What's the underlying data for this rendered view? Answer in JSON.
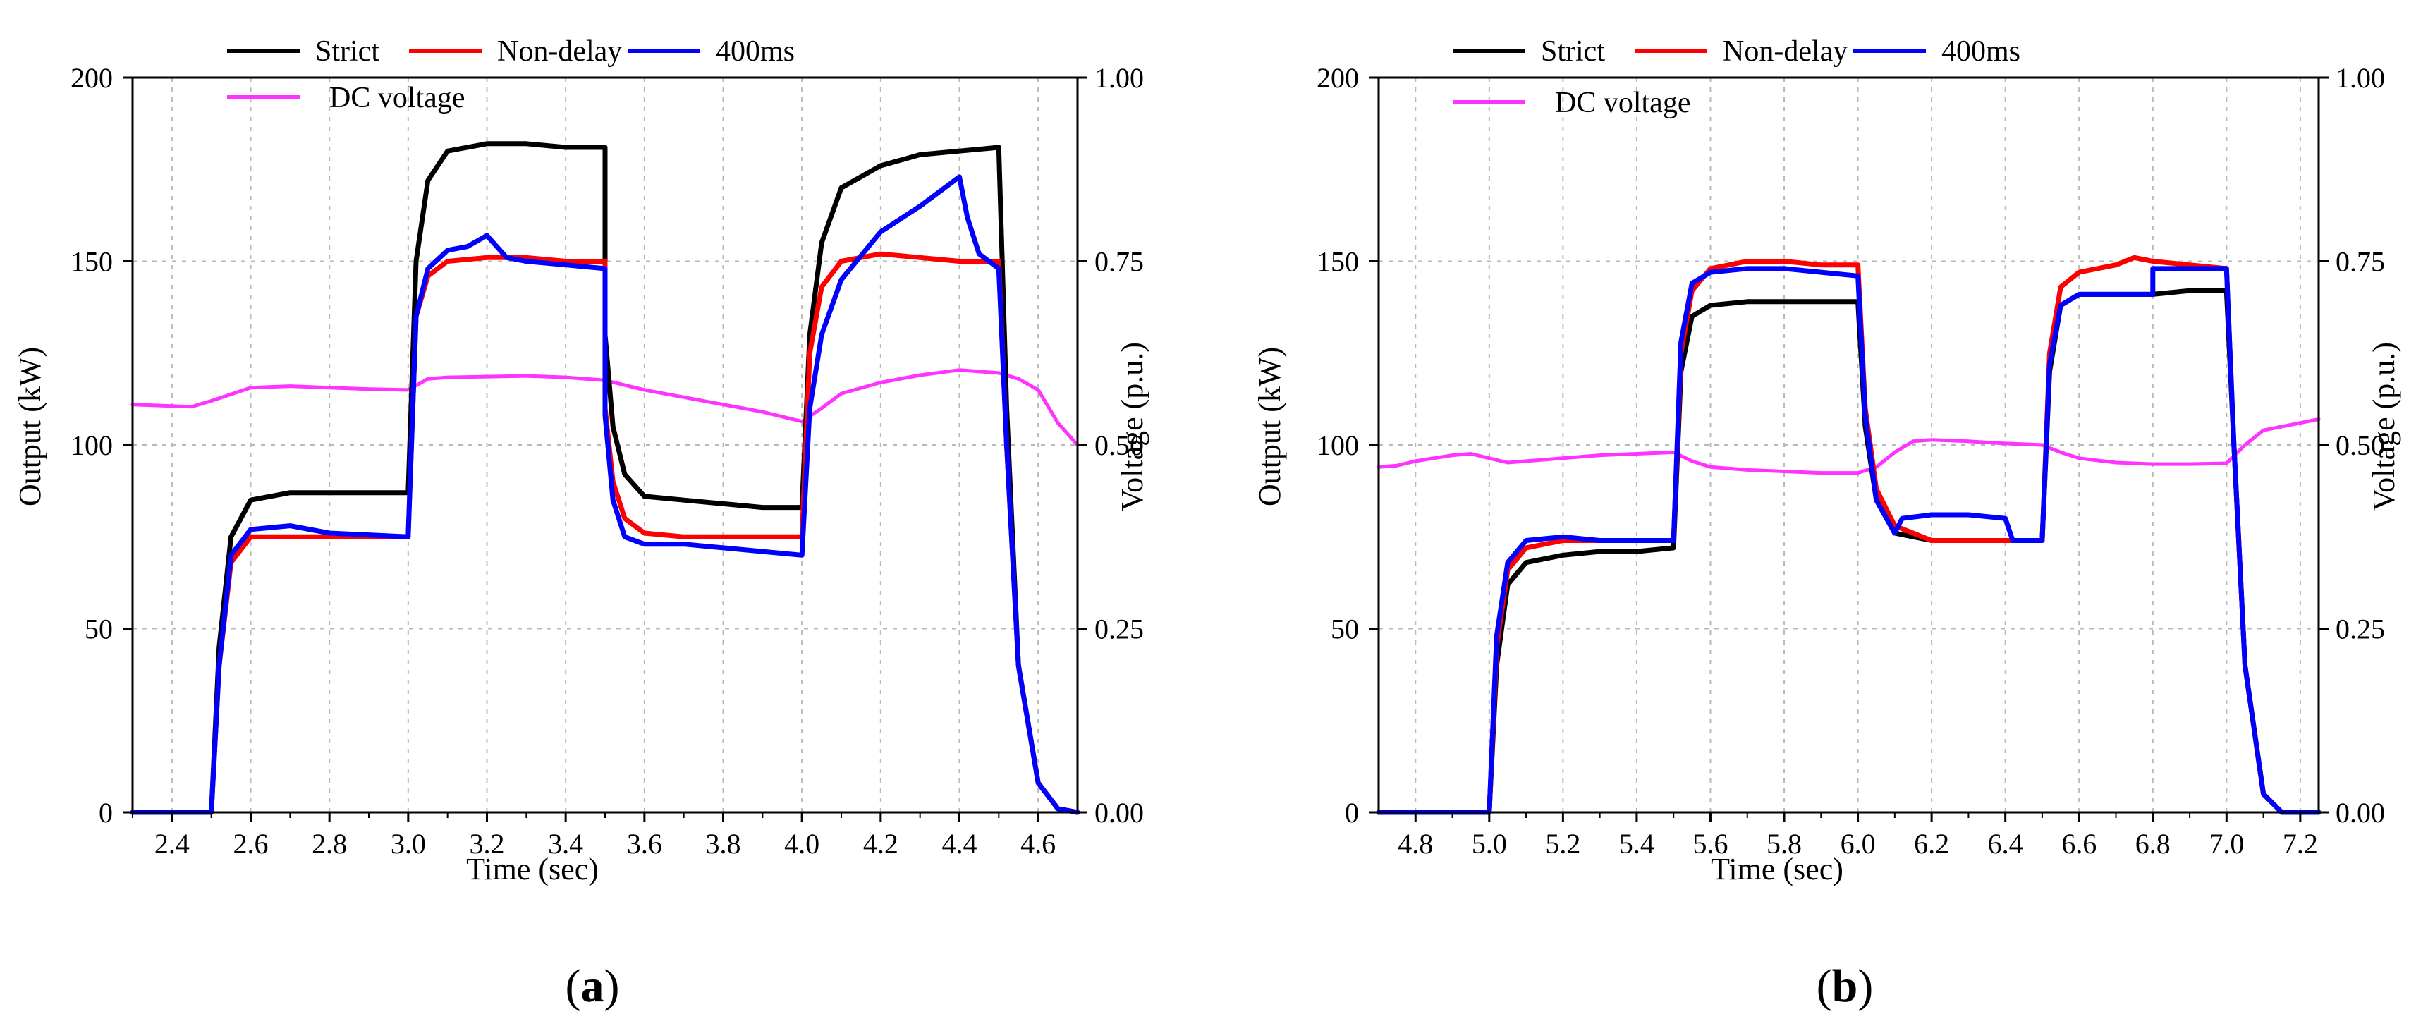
{
  "chart_data": [
    {
      "type": "line",
      "panel": "a",
      "caption": {
        "open": "(",
        "letter": "a",
        "close": ")"
      },
      "xlabel": "Time (sec)",
      "ylabel": "Output (kW)",
      "y2label": "Voltage (p.u.)",
      "xlim": [
        2.3,
        4.7
      ],
      "ylim": [
        0,
        200
      ],
      "y2lim": [
        0,
        1
      ],
      "xticks": [
        "2.4",
        "2.6",
        "2.8",
        "3.0",
        "3.2",
        "3.4",
        "3.6",
        "3.8",
        "4.0",
        "4.2",
        "4.4",
        "4.6"
      ],
      "yticks": [
        "0",
        "50",
        "100",
        "150",
        "200"
      ],
      "y2ticks": [
        "0.00",
        "0.25",
        "0.50",
        "0.75",
        "1.00"
      ],
      "grid": true,
      "legend": [
        "Strict",
        "Non-delay",
        "400ms",
        "DC voltage"
      ],
      "series": [
        {
          "name": "Strict",
          "color": "#000000",
          "axis": "left",
          "x": [
            2.3,
            2.5,
            2.5,
            2.52,
            2.55,
            2.6,
            2.7,
            2.8,
            3.0,
            3.0,
            3.02,
            3.05,
            3.1,
            3.2,
            3.3,
            3.4,
            3.5,
            3.5,
            3.52,
            3.55,
            3.6,
            3.7,
            3.8,
            3.9,
            4.0,
            4.0,
            4.02,
            4.05,
            4.1,
            4.2,
            4.3,
            4.4,
            4.5,
            4.5,
            4.52,
            4.55,
            4.6,
            4.65,
            4.7
          ],
          "y": [
            0,
            0,
            0,
            45,
            75,
            85,
            87,
            87,
            87,
            87,
            150,
            172,
            180,
            182,
            182,
            181,
            181,
            130,
            105,
            92,
            86,
            85,
            84,
            83,
            83,
            83,
            130,
            155,
            170,
            176,
            179,
            180,
            181,
            181,
            110,
            40,
            8,
            1,
            0
          ]
        },
        {
          "name": "Non-delay",
          "color": "#ff0000",
          "axis": "left",
          "x": [
            2.3,
            2.5,
            2.5,
            2.52,
            2.55,
            2.6,
            2.7,
            2.8,
            3.0,
            3.0,
            3.02,
            3.05,
            3.1,
            3.2,
            3.3,
            3.4,
            3.5,
            3.5,
            3.52,
            3.55,
            3.6,
            3.7,
            3.8,
            3.9,
            4.0,
            4.0,
            4.02,
            4.05,
            4.1,
            4.2,
            4.3,
            4.4,
            4.5,
            4.5,
            4.52,
            4.55,
            4.6,
            4.65,
            4.7
          ],
          "y": [
            0,
            0,
            0,
            40,
            68,
            75,
            75,
            75,
            75,
            75,
            135,
            146,
            150,
            151,
            151,
            150,
            150,
            110,
            90,
            80,
            76,
            75,
            75,
            75,
            75,
            75,
            125,
            143,
            150,
            152,
            151,
            150,
            150,
            150,
            100,
            40,
            8,
            1,
            0
          ]
        },
        {
          "name": "400ms",
          "color": "#0000ff",
          "axis": "left",
          "x": [
            2.3,
            2.5,
            2.5,
            2.52,
            2.55,
            2.6,
            2.7,
            2.8,
            3.0,
            3.0,
            3.02,
            3.05,
            3.1,
            3.15,
            3.2,
            3.25,
            3.3,
            3.4,
            3.5,
            3.5,
            3.52,
            3.55,
            3.6,
            3.7,
            3.8,
            3.9,
            4.0,
            4.0,
            4.02,
            4.05,
            4.1,
            4.2,
            4.3,
            4.4,
            4.42,
            4.45,
            4.5,
            4.5,
            4.52,
            4.55,
            4.6,
            4.65,
            4.7
          ],
          "y": [
            0,
            0,
            0,
            40,
            70,
            77,
            78,
            76,
            75,
            75,
            135,
            148,
            153,
            154,
            157,
            151,
            150,
            149,
            148,
            108,
            85,
            75,
            73,
            73,
            72,
            71,
            70,
            70,
            110,
            130,
            145,
            158,
            165,
            173,
            162,
            152,
            148,
            148,
            100,
            40,
            8,
            1,
            0
          ]
        },
        {
          "name": "DC voltage",
          "color": "#ff33ff",
          "axis": "right",
          "x": [
            2.3,
            2.4,
            2.45,
            2.5,
            2.6,
            2.7,
            2.8,
            2.9,
            3.0,
            3.05,
            3.1,
            3.2,
            3.3,
            3.4,
            3.5,
            3.6,
            3.7,
            3.8,
            3.9,
            4.0,
            4.05,
            4.1,
            4.2,
            4.3,
            4.4,
            4.5,
            4.55,
            4.6,
            4.65,
            4.7
          ],
          "y": [
            0.555,
            0.553,
            0.552,
            0.56,
            0.578,
            0.58,
            0.578,
            0.576,
            0.575,
            0.59,
            0.592,
            0.593,
            0.594,
            0.592,
            0.588,
            0.575,
            0.565,
            0.555,
            0.545,
            0.532,
            0.55,
            0.57,
            0.585,
            0.595,
            0.602,
            0.598,
            0.59,
            0.575,
            0.53,
            0.5
          ]
        }
      ]
    },
    {
      "type": "line",
      "panel": "b",
      "caption": {
        "open": "(",
        "letter": "b",
        "close": ")"
      },
      "xlabel": "Time (sec)",
      "ylabel": "Output (kW)",
      "y2label": "Voltage (p.u.)",
      "xlim": [
        4.7,
        7.25
      ],
      "ylim": [
        0,
        200
      ],
      "y2lim": [
        0,
        1
      ],
      "xticks": [
        "4.8",
        "5.0",
        "5.2",
        "5.4",
        "5.6",
        "5.8",
        "6.0",
        "6.2",
        "6.4",
        "6.6",
        "6.8",
        "7.0",
        "7.2"
      ],
      "yticks": [
        "0",
        "50",
        "100",
        "150",
        "200"
      ],
      "y2ticks": [
        "0.00",
        "0.25",
        "0.50",
        "0.75",
        "1.00"
      ],
      "grid": true,
      "legend": [
        "Strict",
        "Non-delay",
        "400ms",
        "DC voltage"
      ],
      "series": [
        {
          "name": "Strict",
          "color": "#000000",
          "axis": "left",
          "x": [
            4.7,
            5.0,
            5.0,
            5.02,
            5.05,
            5.1,
            5.2,
            5.3,
            5.4,
            5.5,
            5.5,
            5.52,
            5.55,
            5.6,
            5.7,
            5.8,
            5.9,
            6.0,
            6.0,
            6.02,
            6.05,
            6.1,
            6.2,
            6.3,
            6.4,
            6.5,
            6.5,
            6.52,
            6.55,
            6.6,
            6.7,
            6.8,
            6.9,
            7.0,
            7.0,
            7.02,
            7.05,
            7.1,
            7.15,
            7.25
          ],
          "y": [
            0,
            0,
            0,
            40,
            62,
            68,
            70,
            71,
            71,
            72,
            72,
            120,
            135,
            138,
            139,
            139,
            139,
            139,
            139,
            105,
            85,
            76,
            74,
            74,
            74,
            74,
            74,
            120,
            138,
            141,
            141,
            141,
            142,
            142,
            142,
            100,
            40,
            5,
            0,
            0
          ]
        },
        {
          "name": "Non-delay",
          "color": "#ff0000",
          "axis": "left",
          "x": [
            4.7,
            5.0,
            5.0,
            5.02,
            5.05,
            5.1,
            5.2,
            5.3,
            5.4,
            5.5,
            5.5,
            5.52,
            5.55,
            5.6,
            5.7,
            5.8,
            5.9,
            6.0,
            6.0,
            6.02,
            6.05,
            6.1,
            6.2,
            6.3,
            6.4,
            6.5,
            6.5,
            6.52,
            6.55,
            6.6,
            6.7,
            6.75,
            6.8,
            6.9,
            7.0,
            7.0,
            7.02,
            7.05,
            7.1,
            7.15,
            7.25
          ],
          "y": [
            0,
            0,
            0,
            45,
            66,
            72,
            74,
            74,
            74,
            74,
            74,
            125,
            142,
            148,
            150,
            150,
            149,
            149,
            149,
            110,
            88,
            78,
            74,
            74,
            74,
            74,
            74,
            125,
            143,
            147,
            149,
            151,
            150,
            149,
            148,
            148,
            100,
            40,
            5,
            0,
            0
          ]
        },
        {
          "name": "400ms",
          "color": "#0000ff",
          "axis": "left",
          "x": [
            4.7,
            5.0,
            5.0,
            5.02,
            5.05,
            5.1,
            5.2,
            5.3,
            5.4,
            5.5,
            5.5,
            5.52,
            5.55,
            5.6,
            5.7,
            5.8,
            5.9,
            6.0,
            6.0,
            6.02,
            6.05,
            6.1,
            6.12,
            6.2,
            6.3,
            6.4,
            6.42,
            6.5,
            6.5,
            6.52,
            6.55,
            6.6,
            6.7,
            6.8,
            6.8,
            6.9,
            7.0,
            7.0,
            7.02,
            7.05,
            7.1,
            7.15,
            7.25
          ],
          "y": [
            0,
            0,
            0,
            48,
            68,
            74,
            75,
            74,
            74,
            74,
            74,
            128,
            144,
            147,
            148,
            148,
            147,
            146,
            146,
            108,
            85,
            76,
            80,
            81,
            81,
            80,
            74,
            74,
            74,
            122,
            138,
            141,
            141,
            141,
            148,
            148,
            148,
            148,
            100,
            40,
            5,
            0,
            0
          ]
        },
        {
          "name": "DC voltage",
          "color": "#ff33ff",
          "axis": "right",
          "x": [
            4.7,
            4.75,
            4.8,
            4.9,
            4.95,
            5.0,
            5.05,
            5.1,
            5.2,
            5.3,
            5.4,
            5.5,
            5.55,
            5.6,
            5.7,
            5.8,
            5.9,
            6.0,
            6.05,
            6.1,
            6.15,
            6.2,
            6.3,
            6.4,
            6.5,
            6.55,
            6.6,
            6.7,
            6.8,
            6.9,
            7.0,
            7.05,
            7.1,
            7.2,
            7.25
          ],
          "y": [
            0.47,
            0.472,
            0.478,
            0.486,
            0.488,
            0.482,
            0.476,
            0.478,
            0.482,
            0.486,
            0.488,
            0.49,
            0.478,
            0.47,
            0.466,
            0.464,
            0.462,
            0.462,
            0.47,
            0.49,
            0.505,
            0.507,
            0.505,
            0.502,
            0.5,
            0.49,
            0.482,
            0.476,
            0.474,
            0.474,
            0.475,
            0.5,
            0.52,
            0.53,
            0.535
          ]
        }
      ]
    }
  ]
}
